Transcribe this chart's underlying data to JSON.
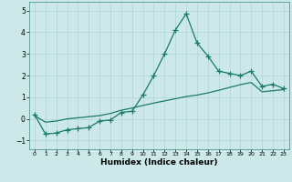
{
  "xlabel": "Humidex (Indice chaleur)",
  "ylabel": "",
  "xlim": [
    -0.5,
    23.5
  ],
  "ylim": [
    -1.4,
    5.4
  ],
  "yticks": [
    -1,
    0,
    1,
    2,
    3,
    4,
    5
  ],
  "xticks": [
    0,
    1,
    2,
    3,
    4,
    5,
    6,
    7,
    8,
    9,
    10,
    11,
    12,
    13,
    14,
    15,
    16,
    17,
    18,
    19,
    20,
    21,
    22,
    23
  ],
  "line1_x": [
    0,
    1,
    2,
    3,
    4,
    5,
    6,
    7,
    8,
    9,
    10,
    11,
    12,
    13,
    14,
    15,
    16,
    17,
    18,
    19,
    20,
    21,
    22,
    23
  ],
  "line1_y": [
    0.2,
    -0.7,
    -0.65,
    -0.5,
    -0.45,
    -0.4,
    -0.1,
    -0.05,
    0.3,
    0.35,
    1.1,
    2.0,
    3.0,
    4.1,
    4.85,
    3.5,
    2.9,
    2.2,
    2.1,
    2.0,
    2.2,
    1.5,
    1.6,
    1.4
  ],
  "line2_x": [
    0,
    1,
    2,
    3,
    4,
    5,
    6,
    7,
    8,
    9,
    10,
    11,
    12,
    13,
    14,
    15,
    16,
    17,
    18,
    19,
    20,
    21,
    22,
    23
  ],
  "line2_y": [
    0.15,
    -0.15,
    -0.1,
    0.0,
    0.05,
    0.1,
    0.15,
    0.25,
    0.4,
    0.5,
    0.62,
    0.73,
    0.83,
    0.93,
    1.03,
    1.1,
    1.2,
    1.32,
    1.45,
    1.58,
    1.68,
    1.25,
    1.3,
    1.35
  ],
  "line_color": "#1a7a6e",
  "bg_color": "#cce8e8",
  "grid_color": "#b0d4d4",
  "marker": "+",
  "markersize": 4,
  "linewidth": 0.9
}
